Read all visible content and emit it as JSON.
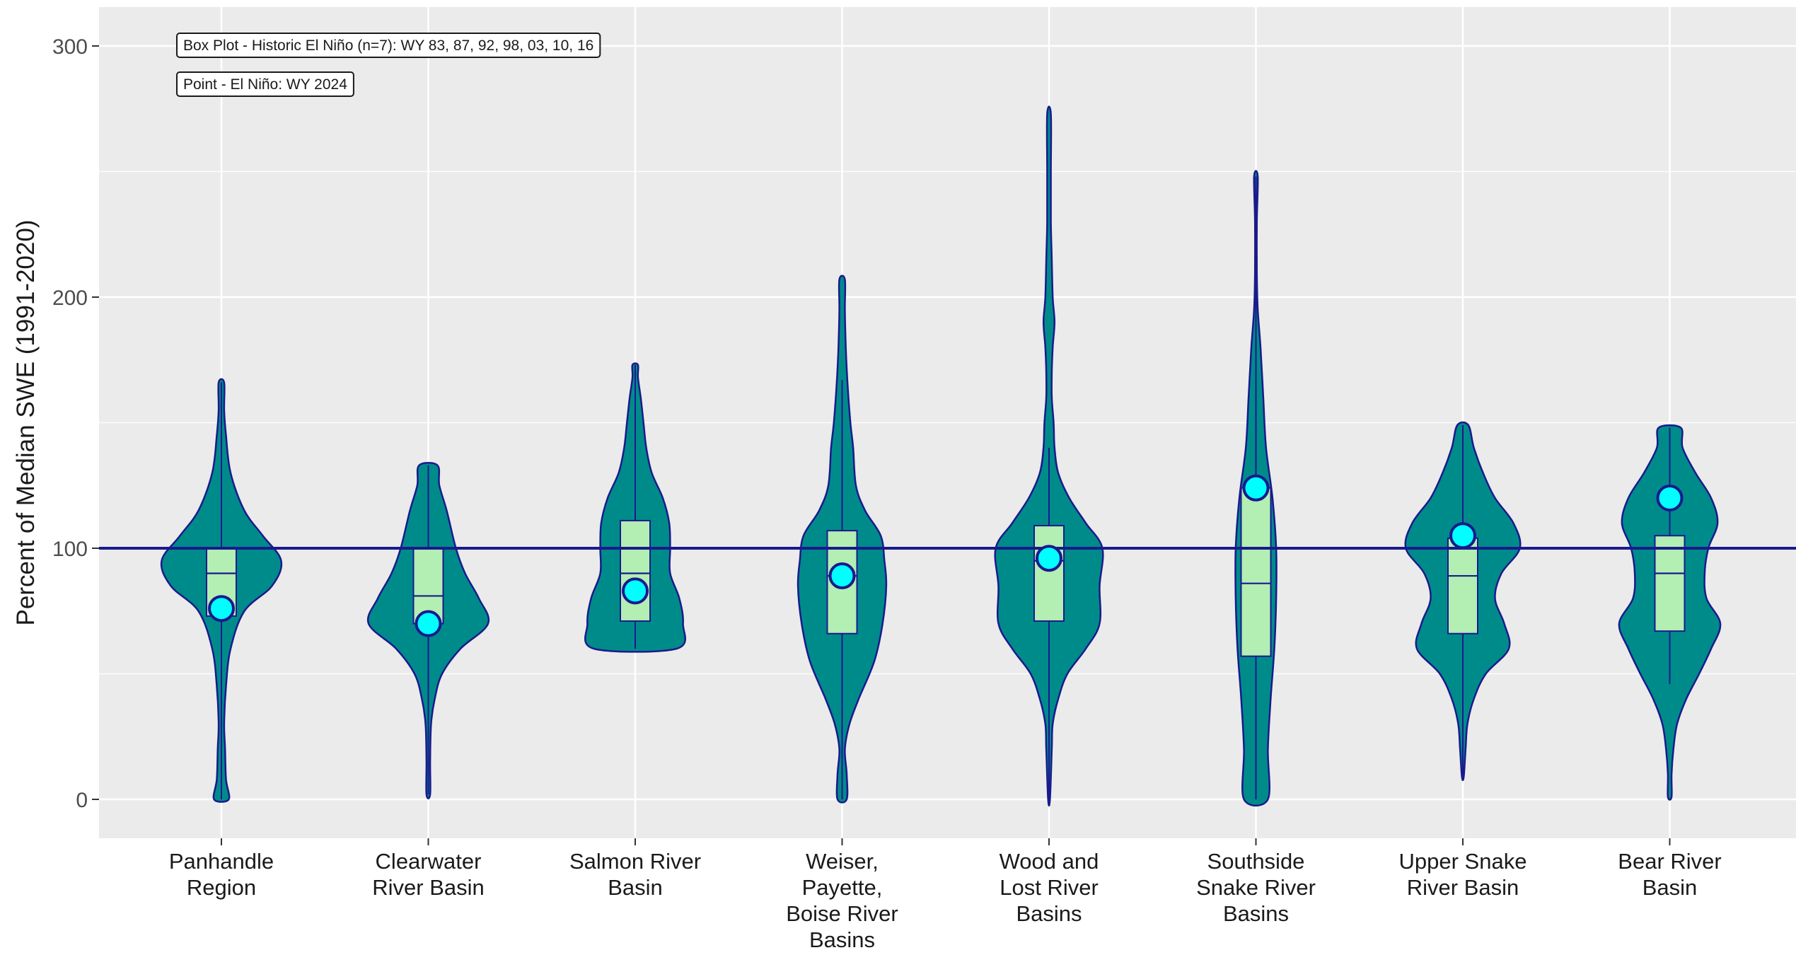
{
  "chart_data": {
    "type": "violin",
    "ylabel": "Percent of Median SWE (1991-2020)",
    "xlabel": "",
    "ylim": [
      -15,
      315
    ],
    "yticks": [
      0,
      100,
      200,
      300
    ],
    "reference_line": 100,
    "grid": true,
    "legend_notes": [
      "Box Plot - Historic El Niño (n=7): WY 83, 87, 92, 98, 03, 10, 16",
      "Point - El Niño: WY 2024"
    ],
    "colors": {
      "panel_bg": "#ebebeb",
      "grid": "#ffffff",
      "violin_fill": "#008b8b",
      "outline": "#1a1a8c",
      "box_fill": "#b3eeb3",
      "point_fill": "#00ffff",
      "reference_line": "#1a1a8c",
      "text": "#1a1a1a"
    },
    "categories": [
      "Panhandle\nRegion",
      "Clearwater\nRiver Basin",
      "Salmon River\nBasin",
      "Weiser,\nPayette,\nBoise River\nBasins",
      "Wood and\nLost River\nBasins",
      "Southside\nSnake River\nBasins",
      "Upper Snake\nRiver Basin",
      "Bear River\nBasin"
    ],
    "violins": [
      {
        "profile": [
          [
            0,
            8
          ],
          [
            8,
            5
          ],
          [
            20,
            4
          ],
          [
            30,
            3
          ],
          [
            45,
            5
          ],
          [
            60,
            10
          ],
          [
            75,
            25
          ],
          [
            85,
            55
          ],
          [
            95,
            65
          ],
          [
            105,
            45
          ],
          [
            115,
            25
          ],
          [
            130,
            10
          ],
          [
            145,
            5
          ],
          [
            155,
            3
          ],
          [
            166,
            3
          ]
        ]
      },
      {
        "profile": [
          [
            2,
            2
          ],
          [
            15,
            2
          ],
          [
            30,
            3
          ],
          [
            40,
            7
          ],
          [
            50,
            15
          ],
          [
            60,
            35
          ],
          [
            70,
            65
          ],
          [
            80,
            55
          ],
          [
            90,
            40
          ],
          [
            100,
            30
          ],
          [
            115,
            20
          ],
          [
            125,
            12
          ],
          [
            133,
            10
          ]
        ]
      },
      {
        "profile": [
          [
            60,
            45
          ],
          [
            70,
            52
          ],
          [
            80,
            48
          ],
          [
            90,
            38
          ],
          [
            100,
            38
          ],
          [
            110,
            37
          ],
          [
            120,
            30
          ],
          [
            130,
            18
          ],
          [
            140,
            12
          ],
          [
            150,
            9
          ],
          [
            160,
            6
          ],
          [
            168,
            3
          ],
          [
            173,
            3
          ]
        ]
      },
      {
        "profile": [
          [
            0,
            5
          ],
          [
            10,
            5
          ],
          [
            20,
            3
          ],
          [
            30,
            8
          ],
          [
            40,
            18
          ],
          [
            55,
            35
          ],
          [
            70,
            44
          ],
          [
            85,
            48
          ],
          [
            95,
            46
          ],
          [
            105,
            42
          ],
          [
            115,
            25
          ],
          [
            125,
            15
          ],
          [
            140,
            12
          ],
          [
            150,
            9
          ],
          [
            165,
            6
          ],
          [
            180,
            4
          ],
          [
            195,
            3
          ],
          [
            207,
            3
          ]
        ]
      },
      {
        "profile": [
          [
            0,
            1
          ],
          [
            20,
            3
          ],
          [
            30,
            4
          ],
          [
            40,
            10
          ],
          [
            50,
            20
          ],
          [
            60,
            40
          ],
          [
            70,
            55
          ],
          [
            85,
            55
          ],
          [
            100,
            58
          ],
          [
            110,
            40
          ],
          [
            120,
            22
          ],
          [
            130,
            10
          ],
          [
            140,
            6
          ],
          [
            150,
            5
          ],
          [
            160,
            3
          ],
          [
            170,
            3
          ],
          [
            180,
            4
          ],
          [
            190,
            6
          ],
          [
            200,
            4
          ],
          [
            215,
            3
          ],
          [
            230,
            2
          ],
          [
            250,
            2
          ],
          [
            273,
            2
          ]
        ]
      },
      {
        "profile": [
          [
            0,
            13
          ],
          [
            20,
            13
          ],
          [
            40,
            16
          ],
          [
            60,
            20
          ],
          [
            80,
            22
          ],
          [
            100,
            22
          ],
          [
            120,
            18
          ],
          [
            140,
            11
          ],
          [
            160,
            8
          ],
          [
            180,
            5
          ],
          [
            195,
            2
          ],
          [
            210,
            1
          ],
          [
            230,
            1
          ],
          [
            248,
            2
          ]
        ]
      },
      {
        "profile": [
          [
            9,
            1
          ],
          [
            20,
            3
          ],
          [
            30,
            5
          ],
          [
            40,
            12
          ],
          [
            50,
            25
          ],
          [
            60,
            50
          ],
          [
            70,
            45
          ],
          [
            80,
            35
          ],
          [
            90,
            42
          ],
          [
            100,
            62
          ],
          [
            110,
            55
          ],
          [
            120,
            35
          ],
          [
            130,
            22
          ],
          [
            140,
            12
          ],
          [
            149,
            6
          ]
        ]
      },
      {
        "profile": [
          [
            1,
            2
          ],
          [
            10,
            2
          ],
          [
            20,
            4
          ],
          [
            30,
            8
          ],
          [
            40,
            18
          ],
          [
            50,
            32
          ],
          [
            60,
            45
          ],
          [
            70,
            55
          ],
          [
            80,
            40
          ],
          [
            90,
            38
          ],
          [
            100,
            42
          ],
          [
            110,
            52
          ],
          [
            120,
            45
          ],
          [
            130,
            28
          ],
          [
            140,
            14
          ],
          [
            148,
            12
          ]
        ]
      }
    ],
    "boxes": [
      {
        "q1": 73,
        "median": 90,
        "q3": 100,
        "whisker_low": 0,
        "whisker_high": 166
      },
      {
        "q1": 70,
        "median": 81,
        "q3": 100,
        "whisker_low": 2,
        "whisker_high": 133
      },
      {
        "q1": 71,
        "median": 90,
        "q3": 111,
        "whisker_low": 60,
        "whisker_high": 173
      },
      {
        "q1": 66,
        "median": 89,
        "q3": 107,
        "whisker_low": 0,
        "whisker_high": 167
      },
      {
        "q1": 71,
        "median": 95,
        "q3": 109,
        "whisker_low": 0,
        "whisker_high": 140
      },
      {
        "q1": 57,
        "median": 86,
        "q3": 124,
        "whisker_low": 0,
        "whisker_high": 248
      },
      {
        "q1": 66,
        "median": 89,
        "q3": 104,
        "whisker_low": 9,
        "whisker_high": 149
      },
      {
        "q1": 67,
        "median": 90,
        "q3": 105,
        "whisker_low": 46,
        "whisker_high": 148
      }
    ],
    "points_wy2024": [
      76,
      70,
      83,
      89,
      96,
      124,
      105,
      120
    ]
  }
}
